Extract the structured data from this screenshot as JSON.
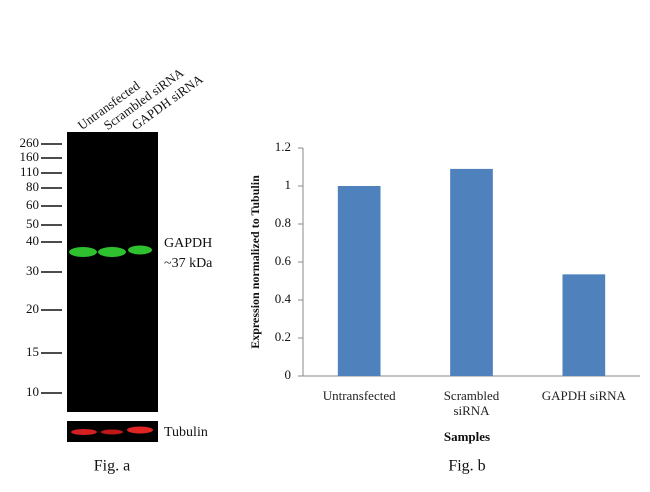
{
  "figure_a": {
    "lanes": [
      "Untransfected",
      "Scrambled siRNA",
      "GAPDH siRNA"
    ],
    "ladder": [
      260,
      160,
      110,
      80,
      60,
      50,
      40,
      30,
      20,
      15,
      10
    ],
    "band_label": "GAPDH",
    "band_size": "~37 kDa",
    "control_label": "Tubulin",
    "caption": "Fig. a"
  },
  "chart_data": {
    "type": "bar",
    "categories": [
      "Untransfected",
      "Scrambled siRNA",
      "GAPDH siRNA"
    ],
    "values": [
      1.0,
      1.09,
      0.535
    ],
    "color": "#4f81bd",
    "ylim": [
      0,
      1.2
    ],
    "yticks": [
      0,
      0.2,
      0.4,
      0.6,
      0.8,
      1,
      1.2
    ],
    "ylabel": "Expression normalized to Tubulin",
    "xlabel": "Samples",
    "caption": "Fig. b"
  }
}
